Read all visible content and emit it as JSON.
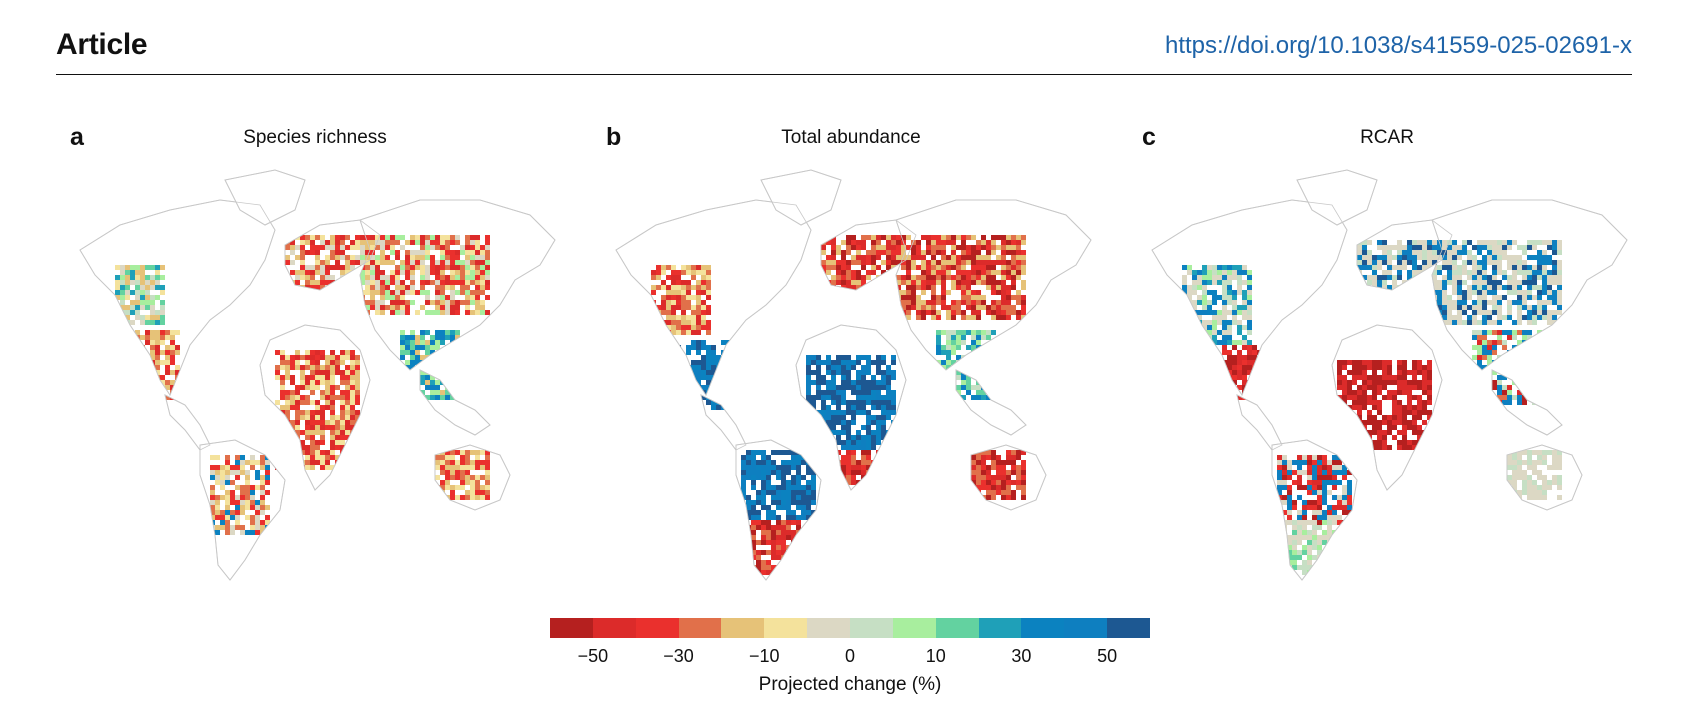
{
  "header": {
    "journal_label": "Article",
    "doi": "https://doi.org/10.1038/s41559-025-02691-x"
  },
  "panels": [
    {
      "letter": "a",
      "title": "Species richness"
    },
    {
      "letter": "b",
      "title": "Total abundance"
    },
    {
      "letter": "c",
      "title": "RCAR"
    }
  ],
  "legend": {
    "title": "Projected change (%)",
    "colors": [
      "#b5201f",
      "#dc2b2a",
      "#ea302d",
      "#e1704a",
      "#e6c278",
      "#f4e29c",
      "#dcd8c4",
      "#c6dfc4",
      "#a8ee9e",
      "#63d2a0",
      "#1fa0b8",
      "#0b82c0",
      "#0e7fc0",
      "#1d5892"
    ],
    "tick_labels": [
      "−50",
      "−30",
      "−10",
      "0",
      "10",
      "30",
      "50"
    ],
    "tick_after_swatch": [
      1,
      3,
      5,
      7,
      9,
      11,
      13
    ]
  },
  "colors": {
    "doi_link": "#1e63a8",
    "land_outline": "#c8c8c8",
    "no_data": "#ffffff"
  }
}
